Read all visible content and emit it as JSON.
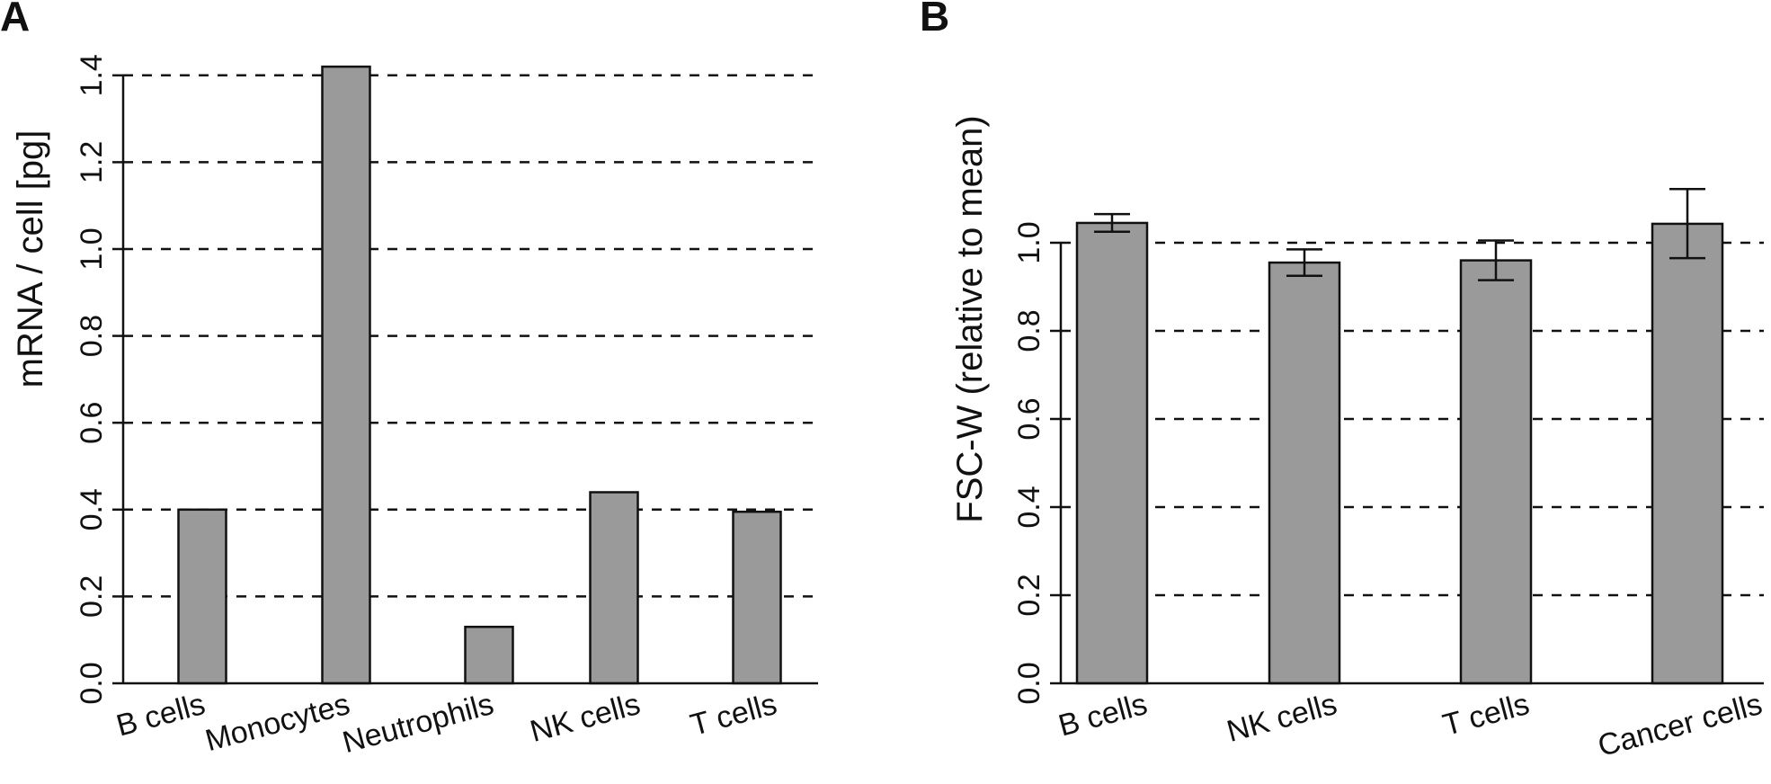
{
  "colors": {
    "bar_fill": "#9a9a9a",
    "ink": "#111111",
    "background": "#ffffff"
  },
  "chart_data": [
    {
      "type": "bar",
      "panel": "A",
      "title": "",
      "xlabel": "",
      "ylabel": "mRNA / cell [pg]",
      "ylim": [
        0,
        1.45
      ],
      "yticks": [
        0,
        0.2,
        0.4,
        0.6,
        0.8,
        1.0,
        1.2,
        1.4
      ],
      "ytick_labels": [
        "0.0",
        "0.2",
        "0.4",
        "0.6",
        "0.8",
        "1.0",
        "1.2",
        "1.4"
      ],
      "gridlines": [
        0.2,
        0.4,
        0.6,
        0.8,
        1.0,
        1.2,
        1.4
      ],
      "categories": [
        "B cells",
        "Monocytes",
        "Neutrophils",
        "NK cells",
        "T cells"
      ],
      "values": [
        0.4,
        1.42,
        0.13,
        0.44,
        0.395
      ],
      "error_bars": null
    },
    {
      "type": "bar",
      "panel": "B",
      "title": "",
      "xlabel": "",
      "ylabel": "FSC-W (relative to mean)",
      "ylim": [
        0,
        1.15
      ],
      "yticks": [
        0,
        0.2,
        0.4,
        0.6,
        0.8,
        1.0
      ],
      "ytick_labels": [
        "0.0",
        "0.2",
        "0.4",
        "0.6",
        "0.8",
        "1.0"
      ],
      "gridlines": [
        0.2,
        0.4,
        0.6,
        0.8,
        1.0
      ],
      "categories": [
        "B cells",
        "NK cells",
        "T cells",
        "Cancer cells"
      ],
      "values": [
        1.045,
        0.955,
        0.96,
        1.043
      ],
      "error_bars": [
        {
          "low": 1.025,
          "high": 1.065
        },
        {
          "low": 0.925,
          "high": 0.985
        },
        {
          "low": 0.915,
          "high": 1.005
        },
        {
          "low": 0.965,
          "high": 1.122
        }
      ]
    }
  ]
}
